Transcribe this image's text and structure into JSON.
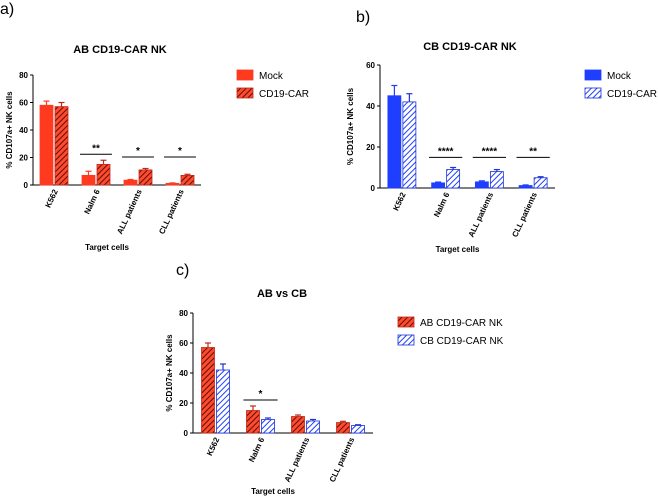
{
  "chart_data": [
    {
      "panel": "a)",
      "type": "bar",
      "title": "AB CD19-CAR NK",
      "xlabel": "Target cells",
      "ylabel": "% CD107a+ NK cells",
      "ylim": [
        0,
        80
      ],
      "yticks": [
        "0",
        "20",
        "40",
        "60",
        "80"
      ],
      "categories": [
        "K562",
        "Nalm 6",
        "ALL patients",
        "CLL patients"
      ],
      "series": [
        {
          "name": "Mock",
          "pattern": "solid",
          "color": "#ff3a1f",
          "values": [
            58,
            7,
            3.5,
            1.2
          ],
          "errors": [
            3,
            3,
            0.5,
            0.3
          ]
        },
        {
          "name": "CD19-CAR",
          "pattern": "hatch",
          "color": "#c0281a",
          "values": [
            57,
            15,
            11,
            7
          ],
          "errors": [
            3,
            3,
            1,
            0.8
          ]
        }
      ],
      "significance": [
        {
          "category": 1,
          "label": "**"
        },
        {
          "category": 2,
          "label": "*"
        },
        {
          "category": 3,
          "label": "*"
        }
      ],
      "legend_position": "right"
    },
    {
      "panel": "b)",
      "type": "bar",
      "title": "CB CD19-CAR NK",
      "xlabel": "Target cells",
      "ylabel": "% CD107a+ NK cells",
      "ylim": [
        0,
        60
      ],
      "yticks": [
        "0",
        "20",
        "40",
        "60"
      ],
      "categories": [
        "K562",
        "Nalm 6",
        "ALL patients",
        "CLL patients"
      ],
      "series": [
        {
          "name": "Mock",
          "pattern": "solid",
          "color": "#1f3fff",
          "values": [
            45,
            2.5,
            3,
            1.2
          ],
          "errors": [
            5,
            0.4,
            0.5,
            0.3
          ]
        },
        {
          "name": "CD19-CAR",
          "pattern": "hatch",
          "color": "#1a33d6",
          "values": [
            42,
            9,
            8,
            5
          ],
          "errors": [
            4,
            1,
            1,
            0.5
          ]
        }
      ],
      "significance": [
        {
          "category": 1,
          "label": "****"
        },
        {
          "category": 2,
          "label": "****"
        },
        {
          "category": 3,
          "label": "**"
        }
      ],
      "legend_position": "right"
    },
    {
      "panel": "c)",
      "type": "bar",
      "title": "AB vs CB",
      "xlabel": "Target cells",
      "ylabel": "% CD107a+ NK cells",
      "ylim": [
        0,
        80
      ],
      "yticks": [
        "0",
        "20",
        "40",
        "60",
        "80"
      ],
      "categories": [
        "K562",
        "Nalm 6",
        "ALL patients",
        "CLL patients"
      ],
      "series": [
        {
          "name": "AB CD19-CAR NK",
          "pattern": "hatch",
          "color": "#c0281a",
          "values": [
            57,
            15,
            11,
            7
          ],
          "errors": [
            3,
            3,
            1,
            0.8
          ]
        },
        {
          "name": "CB CD19-CAR NK",
          "pattern": "hatch",
          "color": "#1a33d6",
          "values": [
            42,
            9,
            8,
            5
          ],
          "errors": [
            4,
            1,
            1,
            0.5
          ]
        }
      ],
      "significance": [
        {
          "category": 1,
          "label": "*"
        }
      ],
      "legend_position": "right"
    }
  ]
}
